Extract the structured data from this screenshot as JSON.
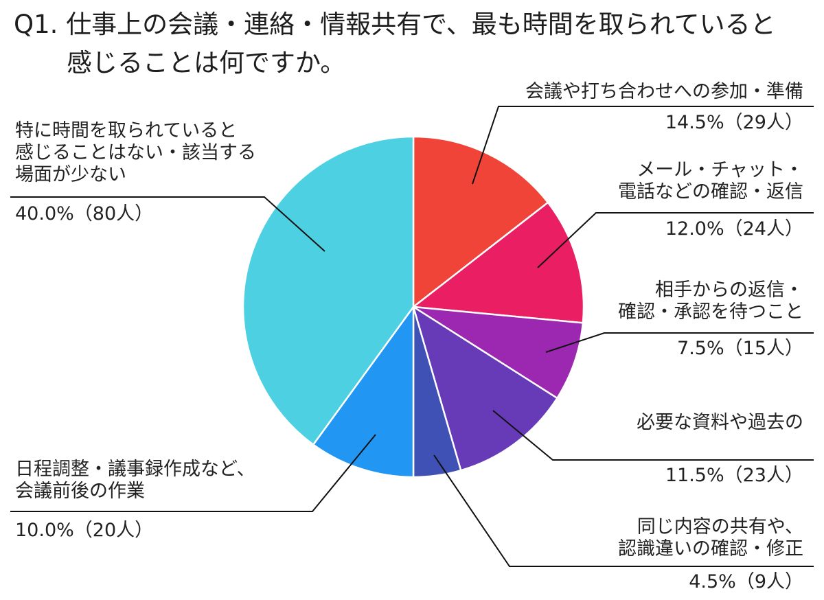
{
  "title": {
    "line1": "Q1. 仕事上の会議・連絡・情報共有で、最も時間を取られていると",
    "line2": "感じることは何ですか。"
  },
  "chart_data": {
    "type": "pie",
    "title": "Q1. 仕事上の会議・連絡・情報共有で、最も時間を取られていると感じることは何ですか。",
    "slices": [
      {
        "label": [
          "会議や打ち合わせへの参加・準備"
        ],
        "percent": 14.5,
        "count": 29,
        "value_label": "14.5%（29人）",
        "color": "#F04438"
      },
      {
        "label": [
          "メール・チャット・",
          "電話などの確認・返信"
        ],
        "percent": 12.0,
        "count": 24,
        "value_label": "12.0%（24人）",
        "color": "#E91E63"
      },
      {
        "label": [
          "相手からの返信・",
          "確認・承認を待つこと"
        ],
        "percent": 7.5,
        "count": 15,
        "value_label": "7.5%（15人）",
        "color": "#9C27B0"
      },
      {
        "label": [
          "必要な資料や過去の"
        ],
        "percent": 11.5,
        "count": 23,
        "value_label": "11.5%（23人）",
        "color": "#673AB7"
      },
      {
        "label": [
          "同じ内容の共有や、",
          "認識違いの確認・修正"
        ],
        "percent": 4.5,
        "count": 9,
        "value_label": "4.5%（9人）",
        "color": "#3F51B5"
      },
      {
        "label": [
          "日程調整・議事録作成など、",
          "会議前後の作業"
        ],
        "percent": 10.0,
        "count": 20,
        "value_label": "10.0%（20人）",
        "color": "#2196F3"
      },
      {
        "label": [
          "特に時間を取られていると",
          "感じることはない・該当する",
          "場面が少ない"
        ],
        "percent": 40.0,
        "count": 80,
        "value_label": "40.0%（80人）",
        "color": "#4DD0E1"
      }
    ]
  }
}
